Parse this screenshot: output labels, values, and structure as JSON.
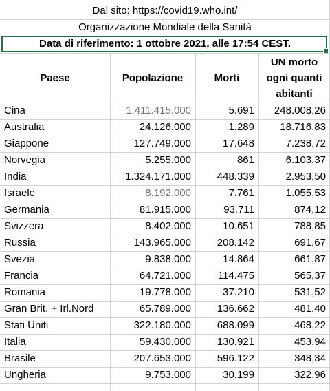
{
  "banner": {
    "source": "Dal sito: https://covid19.who.int/",
    "organization": "Organizzazione Mondiale della Sanità",
    "reference_date": "Data di riferimento: 1 ottobre 2021, alle 17:54 CEST."
  },
  "table": {
    "headers": {
      "country": "Paese",
      "population": "Popolazione",
      "deaths": "Morti",
      "ratio_line1": "UN morto",
      "ratio_line2": "ogni quanti",
      "ratio_line3": "abitanti"
    },
    "rows": [
      {
        "country": "Cina",
        "population": "1.411.415.000",
        "deaths": "5.691",
        "ratio": "248.008,26",
        "population_grey": true
      },
      {
        "country": "Australia",
        "population": "24.126.000",
        "deaths": "1.289",
        "ratio": "18.716,83"
      },
      {
        "country": "Giappone",
        "population": "127.749.000",
        "deaths": "17.648",
        "ratio": "7.238,72"
      },
      {
        "country": "Norvegia",
        "population": "5.255.000",
        "deaths": "861",
        "ratio": "6.103,37"
      },
      {
        "country": "India",
        "population": "1.324.171.000",
        "deaths": "448.339",
        "ratio": "2.953,50"
      },
      {
        "country": "Israele",
        "population": "8.192.000",
        "deaths": "7.761",
        "ratio": "1.055,53",
        "population_grey": true
      },
      {
        "country": "Germania",
        "population": "81.915.000",
        "deaths": "93.711",
        "ratio": "874,12"
      },
      {
        "country": "Svizzera",
        "population": "8.402.000",
        "deaths": "10.651",
        "ratio": "788,85"
      },
      {
        "country": "Russia",
        "population": "143.965.000",
        "deaths": "208.142",
        "ratio": "691,67"
      },
      {
        "country": "Svezia",
        "population": "9.838.000",
        "deaths": "14.864",
        "ratio": "661,87"
      },
      {
        "country": "Francia",
        "population": "64.721.000",
        "deaths": "114.475",
        "ratio": "565,37"
      },
      {
        "country": "Romania",
        "population": "19.778.000",
        "deaths": "37.210",
        "ratio": "531,52"
      },
      {
        "country": "Gran Brit. + Irl.Nord",
        "population": "65.789.000",
        "deaths": "136.662",
        "ratio": "481,40"
      },
      {
        "country": "Stati Uniti",
        "population": "322.180.000",
        "deaths": "688.099",
        "ratio": "468,22"
      },
      {
        "country": "Italia",
        "population": "59.430.000",
        "deaths": "130.921",
        "ratio": "453,94"
      },
      {
        "country": "Brasile",
        "population": "207.653.000",
        "deaths": "596.122",
        "ratio": "348,34"
      },
      {
        "country": "Ungheria",
        "population": "9.753.000",
        "deaths": "30.199",
        "ratio": "322,96"
      }
    ]
  },
  "colors": {
    "gridline": "#d4d4d4",
    "selection": "#217346",
    "grey_text": "#777777"
  }
}
